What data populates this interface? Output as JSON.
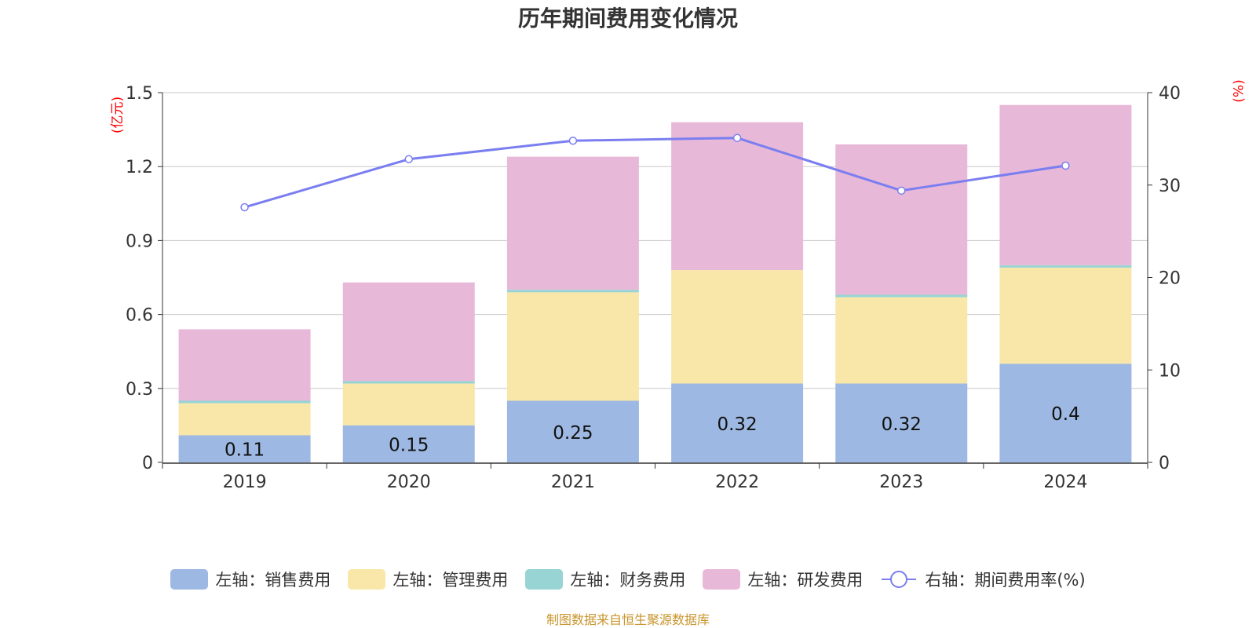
{
  "title": "历年期间费用变化情况",
  "source": "制图数据来自恒生聚源数据库",
  "colors": {
    "sales": "#9db8e2",
    "admin": "#f8e7a8",
    "finance": "#98d4d4",
    "rd": "#e8b8d8",
    "rate": "#7a7ef0",
    "unit": "#ff0000",
    "grid": "#c8c8c8",
    "axis": "#333333",
    "source": "#c8952c"
  },
  "chart_data": {
    "type": "bar",
    "stacked": true,
    "categories": [
      "2019",
      "2020",
      "2021",
      "2022",
      "2023",
      "2024"
    ],
    "left_axis": {
      "unit": "(亿元)",
      "ylim": [
        0,
        1.5
      ],
      "ticks": [
        "0",
        "0.3",
        "0.6",
        "0.9",
        "1.2",
        "1.5"
      ]
    },
    "right_axis": {
      "unit": "(%)",
      "ylim": [
        0,
        40
      ],
      "ticks": [
        "0",
        "10",
        "20",
        "30",
        "40"
      ]
    },
    "series": [
      {
        "name": "左轴：销售费用",
        "key": "sales",
        "values": [
          0.11,
          0.15,
          0.25,
          0.32,
          0.32,
          0.4
        ],
        "labels": [
          "0.11",
          "0.15",
          "0.25",
          "0.32",
          "0.32",
          "0.4"
        ]
      },
      {
        "name": "左轴：管理费用",
        "key": "admin",
        "values": [
          0.13,
          0.17,
          0.44,
          0.46,
          0.35,
          0.39
        ]
      },
      {
        "name": "左轴：财务费用",
        "key": "finance",
        "values": [
          0.01,
          0.01,
          0.01,
          0.0,
          0.01,
          0.01
        ]
      },
      {
        "name": "左轴：研发费用",
        "key": "rd",
        "values": [
          0.29,
          0.4,
          0.54,
          0.6,
          0.61,
          0.65
        ]
      }
    ],
    "line": {
      "name": "右轴：期间费用率(%)",
      "key": "rate",
      "values": [
        27.6,
        32.8,
        34.8,
        35.1,
        29.4,
        32.1
      ]
    },
    "grid": true,
    "legend": "bottom"
  }
}
